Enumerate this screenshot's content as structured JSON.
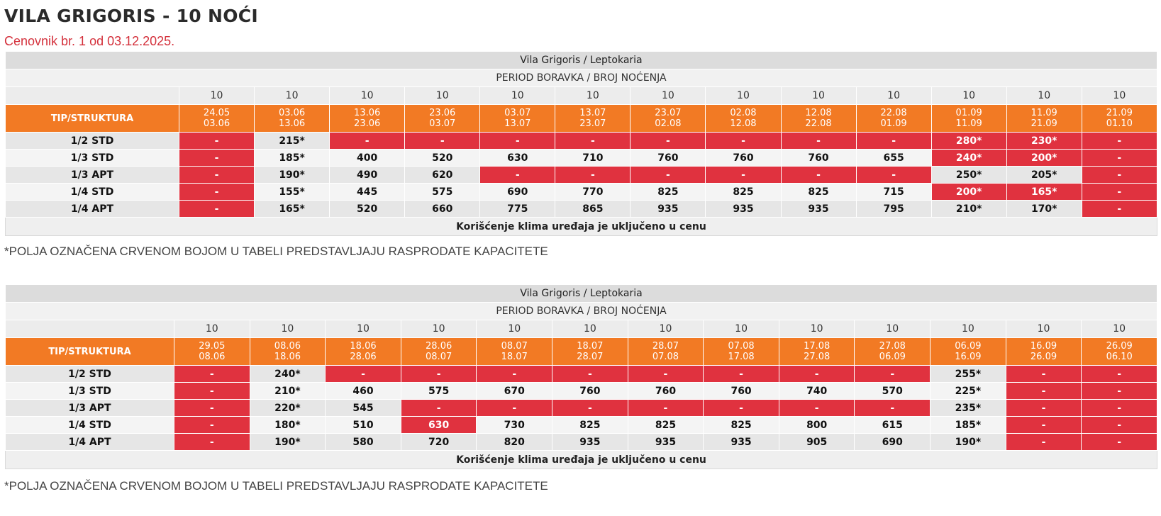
{
  "page": {
    "title": "VILA GRIGORIS - 10 NOĆI",
    "subtitle": "Cenovnik br. 1 od 03.12.2025."
  },
  "colors": {
    "orange": "#f27a24",
    "red": "#e0323f",
    "title": "#2b2b2b"
  },
  "tables": [
    {
      "header": "Vila Grigoris / Leptokaria",
      "period_label": "PERIOD BORAVKA / BROJ NOĆENJA",
      "tip_label": "TIP/STRUKTURA",
      "nights": [
        "10",
        "10",
        "10",
        "10",
        "10",
        "10",
        "10",
        "10",
        "10",
        "10",
        "10",
        "10",
        "10"
      ],
      "dates": [
        [
          "24.05",
          "03.06"
        ],
        [
          "03.06",
          "13.06"
        ],
        [
          "13.06",
          "23.06"
        ],
        [
          "23.06",
          "03.07"
        ],
        [
          "03.07",
          "13.07"
        ],
        [
          "13.07",
          "23.07"
        ],
        [
          "23.07",
          "02.08"
        ],
        [
          "02.08",
          "12.08"
        ],
        [
          "12.08",
          "22.08"
        ],
        [
          "22.08",
          "01.09"
        ],
        [
          "01.09",
          "11.09"
        ],
        [
          "11.09",
          "21.09"
        ],
        [
          "21.09",
          "01.10"
        ]
      ],
      "rows": [
        {
          "label": "1/2 STD",
          "cells": [
            {
              "v": "-",
              "sold": true
            },
            {
              "v": "215*",
              "sold": false
            },
            {
              "v": "-",
              "sold": true
            },
            {
              "v": "-",
              "sold": true
            },
            {
              "v": "-",
              "sold": true
            },
            {
              "v": "-",
              "sold": true
            },
            {
              "v": "-",
              "sold": true
            },
            {
              "v": "-",
              "sold": true
            },
            {
              "v": "-",
              "sold": true
            },
            {
              "v": "-",
              "sold": true
            },
            {
              "v": "280*",
              "sold": true
            },
            {
              "v": "230*",
              "sold": true
            },
            {
              "v": "-",
              "sold": true
            }
          ]
        },
        {
          "label": "1/3 STD",
          "cells": [
            {
              "v": "-",
              "sold": true
            },
            {
              "v": "185*",
              "sold": false
            },
            {
              "v": "400",
              "sold": false
            },
            {
              "v": "520",
              "sold": false
            },
            {
              "v": "630",
              "sold": false
            },
            {
              "v": "710",
              "sold": false
            },
            {
              "v": "760",
              "sold": false
            },
            {
              "v": "760",
              "sold": false
            },
            {
              "v": "760",
              "sold": false
            },
            {
              "v": "655",
              "sold": false
            },
            {
              "v": "240*",
              "sold": true
            },
            {
              "v": "200*",
              "sold": true
            },
            {
              "v": "-",
              "sold": true
            }
          ]
        },
        {
          "label": "1/3 APT",
          "cells": [
            {
              "v": "-",
              "sold": true
            },
            {
              "v": "190*",
              "sold": false
            },
            {
              "v": "490",
              "sold": false
            },
            {
              "v": "620",
              "sold": false
            },
            {
              "v": "-",
              "sold": true
            },
            {
              "v": "-",
              "sold": true
            },
            {
              "v": "-",
              "sold": true
            },
            {
              "v": "-",
              "sold": true
            },
            {
              "v": "-",
              "sold": true
            },
            {
              "v": "-",
              "sold": true
            },
            {
              "v": "250*",
              "sold": false
            },
            {
              "v": "205*",
              "sold": false
            },
            {
              "v": "-",
              "sold": true
            }
          ]
        },
        {
          "label": "1/4 STD",
          "cells": [
            {
              "v": "-",
              "sold": true
            },
            {
              "v": "155*",
              "sold": false
            },
            {
              "v": "445",
              "sold": false
            },
            {
              "v": "575",
              "sold": false
            },
            {
              "v": "690",
              "sold": false
            },
            {
              "v": "770",
              "sold": false
            },
            {
              "v": "825",
              "sold": false
            },
            {
              "v": "825",
              "sold": false
            },
            {
              "v": "825",
              "sold": false
            },
            {
              "v": "715",
              "sold": false
            },
            {
              "v": "200*",
              "sold": true
            },
            {
              "v": "165*",
              "sold": true
            },
            {
              "v": "-",
              "sold": true
            }
          ]
        },
        {
          "label": "1/4 APT",
          "cells": [
            {
              "v": "-",
              "sold": true
            },
            {
              "v": "165*",
              "sold": false
            },
            {
              "v": "520",
              "sold": false
            },
            {
              "v": "660",
              "sold": false
            },
            {
              "v": "775",
              "sold": false
            },
            {
              "v": "865",
              "sold": false
            },
            {
              "v": "935",
              "sold": false
            },
            {
              "v": "935",
              "sold": false
            },
            {
              "v": "935",
              "sold": false
            },
            {
              "v": "795",
              "sold": false
            },
            {
              "v": "210*",
              "sold": false
            },
            {
              "v": "170*",
              "sold": false
            },
            {
              "v": "-",
              "sold": true
            }
          ]
        }
      ],
      "footer": "Korišćenje klima uređaja je uključeno u cenu",
      "note": "*POLJA OZNAČENA CRVENOM BOJOM U TABELI PREDSTAVLJAJU RASPRODATE KAPACITETE"
    },
    {
      "header": "Vila Grigoris / Leptokaria",
      "period_label": "PERIOD BORAVKA / BROJ NOĆENJA",
      "tip_label": "TIP/STRUKTURA",
      "nights": [
        "10",
        "10",
        "10",
        "10",
        "10",
        "10",
        "10",
        "10",
        "10",
        "10",
        "10",
        "10",
        "10"
      ],
      "dates": [
        [
          "29.05",
          "08.06"
        ],
        [
          "08.06",
          "18.06"
        ],
        [
          "18.06",
          "28.06"
        ],
        [
          "28.06",
          "08.07"
        ],
        [
          "08.07",
          "18.07"
        ],
        [
          "18.07",
          "28.07"
        ],
        [
          "28.07",
          "07.08"
        ],
        [
          "07.08",
          "17.08"
        ],
        [
          "17.08",
          "27.08"
        ],
        [
          "27.08",
          "06.09"
        ],
        [
          "06.09",
          "16.09"
        ],
        [
          "16.09",
          "26.09"
        ],
        [
          "26.09",
          "06.10"
        ]
      ],
      "rows": [
        {
          "label": "1/2 STD",
          "cells": [
            {
              "v": "-",
              "sold": true
            },
            {
              "v": "240*",
              "sold": false
            },
            {
              "v": "-",
              "sold": true
            },
            {
              "v": "-",
              "sold": true
            },
            {
              "v": "-",
              "sold": true
            },
            {
              "v": "-",
              "sold": true
            },
            {
              "v": "-",
              "sold": true
            },
            {
              "v": "-",
              "sold": true
            },
            {
              "v": "-",
              "sold": true
            },
            {
              "v": "-",
              "sold": true
            },
            {
              "v": "255*",
              "sold": false
            },
            {
              "v": "-",
              "sold": true
            },
            {
              "v": "-",
              "sold": true
            }
          ]
        },
        {
          "label": "1/3 STD",
          "cells": [
            {
              "v": "-",
              "sold": true
            },
            {
              "v": "210*",
              "sold": false
            },
            {
              "v": "460",
              "sold": false
            },
            {
              "v": "575",
              "sold": false
            },
            {
              "v": "670",
              "sold": false
            },
            {
              "v": "760",
              "sold": false
            },
            {
              "v": "760",
              "sold": false
            },
            {
              "v": "760",
              "sold": false
            },
            {
              "v": "740",
              "sold": false
            },
            {
              "v": "570",
              "sold": false
            },
            {
              "v": "225*",
              "sold": false
            },
            {
              "v": "-",
              "sold": true
            },
            {
              "v": "-",
              "sold": true
            }
          ]
        },
        {
          "label": "1/3 APT",
          "cells": [
            {
              "v": "-",
              "sold": true
            },
            {
              "v": "220*",
              "sold": false
            },
            {
              "v": "545",
              "sold": false
            },
            {
              "v": "-",
              "sold": true
            },
            {
              "v": "-",
              "sold": true
            },
            {
              "v": "-",
              "sold": true
            },
            {
              "v": "-",
              "sold": true
            },
            {
              "v": "-",
              "sold": true
            },
            {
              "v": "-",
              "sold": true
            },
            {
              "v": "-",
              "sold": true
            },
            {
              "v": "235*",
              "sold": false
            },
            {
              "v": "-",
              "sold": true
            },
            {
              "v": "-",
              "sold": true
            }
          ]
        },
        {
          "label": "1/4 STD",
          "cells": [
            {
              "v": "-",
              "sold": true
            },
            {
              "v": "180*",
              "sold": false
            },
            {
              "v": "510",
              "sold": false
            },
            {
              "v": "630",
              "sold": true
            },
            {
              "v": "730",
              "sold": false
            },
            {
              "v": "825",
              "sold": false
            },
            {
              "v": "825",
              "sold": false
            },
            {
              "v": "825",
              "sold": false
            },
            {
              "v": "800",
              "sold": false
            },
            {
              "v": "615",
              "sold": false
            },
            {
              "v": "185*",
              "sold": false
            },
            {
              "v": "-",
              "sold": true
            },
            {
              "v": "-",
              "sold": true
            }
          ]
        },
        {
          "label": "1/4 APT",
          "cells": [
            {
              "v": "-",
              "sold": true
            },
            {
              "v": "190*",
              "sold": false
            },
            {
              "v": "580",
              "sold": false
            },
            {
              "v": "720",
              "sold": false
            },
            {
              "v": "820",
              "sold": false
            },
            {
              "v": "935",
              "sold": false
            },
            {
              "v": "935",
              "sold": false
            },
            {
              "v": "935",
              "sold": false
            },
            {
              "v": "905",
              "sold": false
            },
            {
              "v": "690",
              "sold": false
            },
            {
              "v": "190*",
              "sold": false
            },
            {
              "v": "-",
              "sold": true
            },
            {
              "v": "-",
              "sold": true
            }
          ]
        }
      ],
      "footer": "Korišćenje klima uređaja je uključeno u cenu",
      "note": "*POLJA OZNAČENA CRVENOM BOJOM U TABELI PREDSTAVLJAJU RASPRODATE KAPACITETE"
    }
  ]
}
